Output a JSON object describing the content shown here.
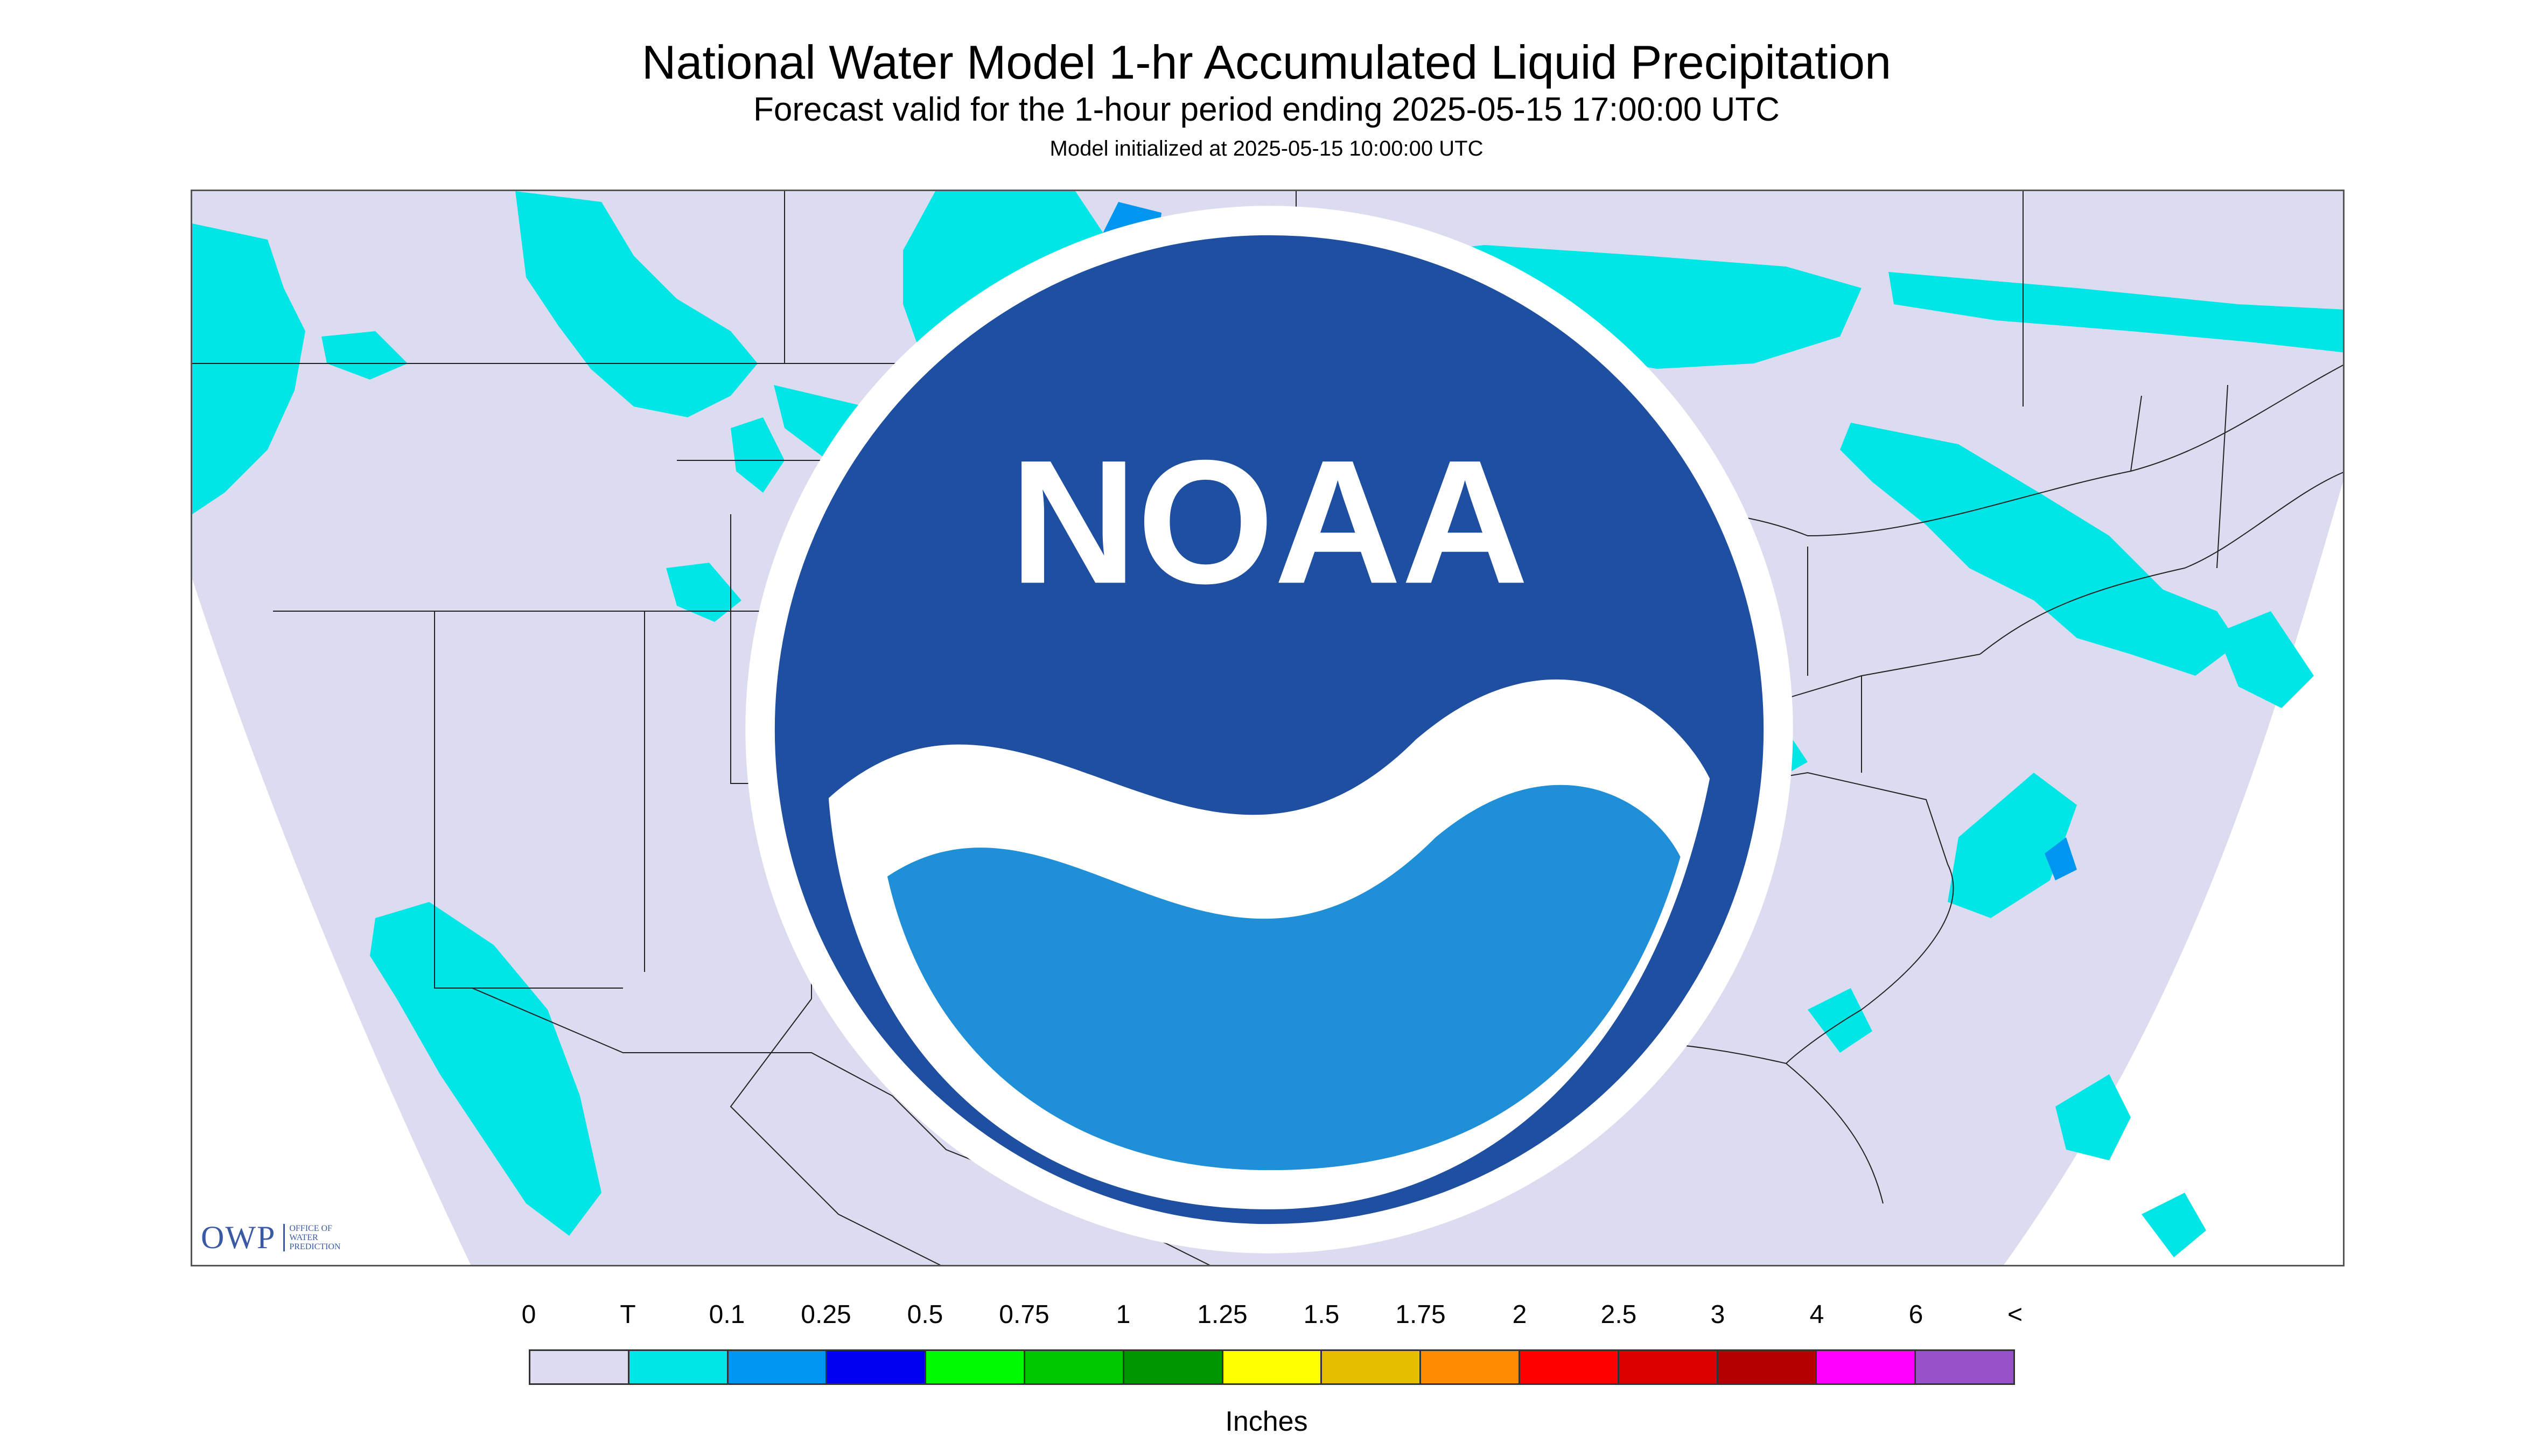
{
  "title": "National Water Model 1-hr Accumulated Liquid Precipitation",
  "subtitle": "Forecast valid for the 1-hour period ending 2025-05-15 17:00:00 UTC",
  "init_text": "Model initialized at 2025-05-15 10:00:00 UTC",
  "logos": {
    "owp_text": "OWP",
    "owp_subtext": "OFFICE OF WATER PREDICTION",
    "noaa_text": "NOAA"
  },
  "legend": {
    "labels": [
      "0",
      "T",
      "0.1",
      "0.25",
      "0.5",
      "0.75",
      "1",
      "1.25",
      "1.5",
      "1.75",
      "2",
      "2.5",
      "3",
      "4",
      "6",
      "<"
    ],
    "colors": [
      "#dcdcf0",
      "#00e6e6",
      "#0096f0",
      "#0000f0",
      "#00fa00",
      "#00c800",
      "#009600",
      "#ffff00",
      "#e6be00",
      "#ff8c00",
      "#ff0000",
      "#dc0000",
      "#b40000",
      "#ff00ff",
      "#9650c8"
    ],
    "units": "Inches"
  },
  "map": {
    "domain_color": "#dcdcf0",
    "outside_color": "#ffffff",
    "border_color": "#222222"
  }
}
